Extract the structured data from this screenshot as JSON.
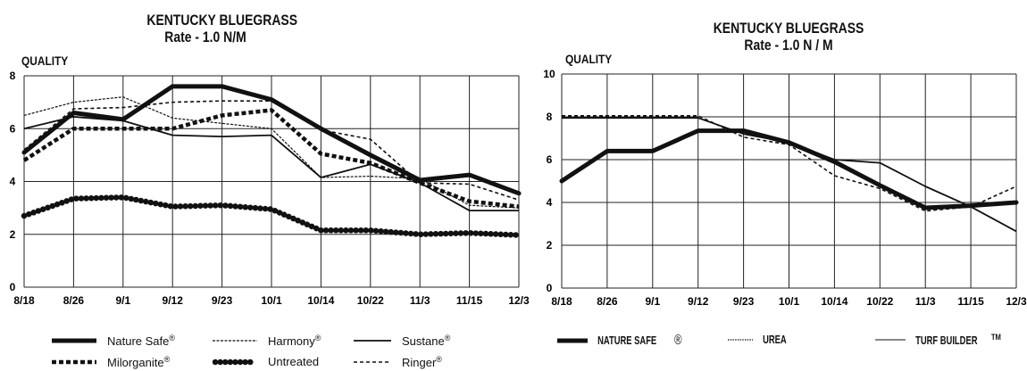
{
  "chart_data": [
    {
      "type": "line",
      "title": "KENTUCKY BLUEGRASS",
      "subtitle": "Rate - 1.0 N/M",
      "ylabel": "QUALITY",
      "ylim": [
        0,
        8
      ],
      "yticks": [
        "0",
        "2",
        "4",
        "6",
        "8"
      ],
      "categories": [
        "8/18",
        "8/26",
        "9/1",
        "9/12",
        "9/23",
        "10/1",
        "10/14",
        "10/22",
        "11/3",
        "11/15",
        "12/3"
      ],
      "grid": true,
      "legend_position": "bottom",
      "series": [
        {
          "name": "Nature Safe",
          "style": "thick-solid",
          "values": [
            5.1,
            6.6,
            6.35,
            7.6,
            7.6,
            7.1,
            6.0,
            5.0,
            4.05,
            4.25,
            3.55
          ]
        },
        {
          "name": "Harmony",
          "style": "thin-dashed",
          "values": [
            6.5,
            7.0,
            7.2,
            6.4,
            6.2,
            6.0,
            4.15,
            4.2,
            4.1,
            3.1,
            3.0
          ]
        },
        {
          "name": "Sustane",
          "style": "thin-solid",
          "values": [
            6.0,
            6.45,
            6.3,
            5.75,
            5.7,
            5.75,
            4.15,
            4.65,
            3.95,
            2.9,
            2.9
          ]
        },
        {
          "name": "Milorganite",
          "style": "thick-dotted",
          "values": [
            4.8,
            6.0,
            6.0,
            6.0,
            6.5,
            6.7,
            5.05,
            4.7,
            3.95,
            3.25,
            3.05
          ]
        },
        {
          "name": "Untreated",
          "style": "thick-beaded",
          "values": [
            2.7,
            3.35,
            3.4,
            3.05,
            3.1,
            2.95,
            2.15,
            2.15,
            2.0,
            2.05,
            1.97
          ]
        },
        {
          "name": "Ringer",
          "style": "thin-dotted",
          "values": [
            5.2,
            6.75,
            6.8,
            7.0,
            7.05,
            7.05,
            5.95,
            5.6,
            3.95,
            3.9,
            3.3
          ]
        }
      ]
    },
    {
      "type": "line",
      "title": "KENTUCKY BLUEGRASS",
      "subtitle": "Rate - 1.0 N / M",
      "ylabel": "QUALITY",
      "ylim": [
        0,
        10
      ],
      "yticks": [
        "0",
        "2",
        "4",
        "6",
        "8",
        "10"
      ],
      "categories": [
        "8/18",
        "8/26",
        "9/1",
        "9/12",
        "9/23",
        "10/1",
        "10/14",
        "10/22",
        "11/3",
        "11/15",
        "12/3"
      ],
      "grid": true,
      "legend_position": "bottom",
      "series": [
        {
          "name": "NATURE SAFE",
          "style": "thick-solid",
          "values": [
            5.0,
            6.4,
            6.4,
            7.35,
            7.35,
            6.8,
            5.9,
            4.8,
            3.75,
            3.85,
            4.0
          ]
        },
        {
          "name": "UREA",
          "style": "thin-dotted",
          "values": [
            8.05,
            8.05,
            8.05,
            8.05,
            7.05,
            6.7,
            5.25,
            4.65,
            3.6,
            3.8,
            4.75
          ]
        },
        {
          "name": "TURF BUILDER",
          "style": "thin-solid",
          "values": [
            7.95,
            7.95,
            7.95,
            7.95,
            7.2,
            6.8,
            6.0,
            5.85,
            4.75,
            3.8,
            2.65
          ]
        }
      ]
    }
  ],
  "legend1": {
    "nature_safe": "Nature Safe",
    "harmony": "Harmony",
    "sustane": "Sustane",
    "milorganite": "Milorganite",
    "untreated": "Untreated",
    "ringer": "Ringer",
    "reg": "®"
  },
  "legend2": {
    "nature_safe": "NATURE SAFE",
    "nature_safe_mark": "®",
    "urea": "UREA",
    "turf_builder": "TURF BUILDER",
    "turf_builder_mark": "TM"
  }
}
